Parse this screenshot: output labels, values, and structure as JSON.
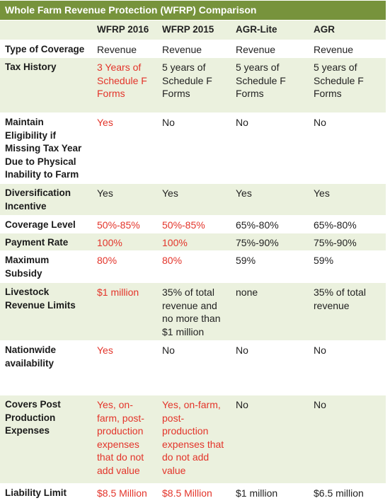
{
  "title": "Whole Farm Revenue Protection (WFRP) Comparison",
  "columns": [
    "WFRP 2016",
    "WFRP 2015",
    "AGR-Lite",
    "AGR"
  ],
  "rows": [
    {
      "label": "Type of Coverage",
      "cells": [
        "Revenue",
        "Revenue",
        "Revenue",
        "Revenue"
      ]
    },
    {
      "label": "Tax History",
      "cells": [
        "3 Years of Schedule F Forms",
        "5 years of Schedule F Forms",
        "5 years of Schedule F Forms",
        "5 years of Schedule F Forms"
      ]
    },
    {
      "label": "Maintain Eligibility if Missing Tax Year Due to Physical Inability to Farm",
      "cells": [
        "Yes",
        "No",
        "No",
        "No"
      ]
    },
    {
      "label": "Diversification Incentive",
      "cells": [
        "Yes",
        "Yes",
        "Yes",
        "Yes"
      ]
    },
    {
      "label": "Coverage Level",
      "cells": [
        "50%-85%",
        "50%-85%",
        "65%-80%",
        "65%-80%"
      ]
    },
    {
      "label": "Payment Rate",
      "cells": [
        "100%",
        "100%",
        "75%-90%",
        "75%-90%"
      ]
    },
    {
      "label": "Maximum Subsidy",
      "cells": [
        "80%",
        "80%",
        "59%",
        "59%"
      ]
    },
    {
      "label": "Livestock Revenue Limits",
      "cells": [
        "$1 million",
        "35% of total revenue and no more than $1 million",
        "none",
        "35% of total revenue"
      ]
    },
    {
      "label": "Nationwide availability",
      "cells": [
        "Yes",
        "No",
        "No",
        "No"
      ]
    },
    {
      "label": "Covers Post Production Expenses",
      "cells": [
        "Yes, on-farm, post-production expenses that do not add value",
        "Yes, on-farm, post-production expenses that do not add value",
        "No",
        "No"
      ]
    },
    {
      "label": "Liability Limit",
      "cells": [
        "$8.5 Million",
        "$8.5 Million",
        "$1 million",
        "$6.5 million"
      ]
    }
  ]
}
